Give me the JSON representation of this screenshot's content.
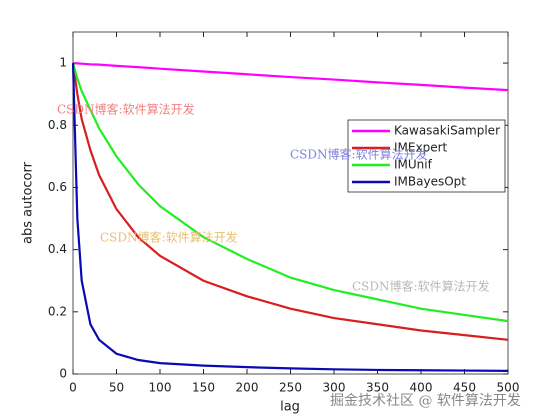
{
  "chart_data": {
    "type": "line",
    "xlabel": "lag",
    "ylabel": "abs autocorr",
    "x": [
      0,
      5,
      10,
      20,
      30,
      50,
      75,
      100,
      150,
      200,
      250,
      300,
      350,
      400,
      450,
      500
    ],
    "series": [
      {
        "name": "KawasakiSampler",
        "color": "#ff00ff",
        "values": [
          1,
          0.999,
          0.998,
          0.996,
          0.995,
          0.991,
          0.987,
          0.982,
          0.973,
          0.964,
          0.955,
          0.947,
          0.938,
          0.93,
          0.921,
          0.913
        ]
      },
      {
        "name": "IMExpert",
        "color": "#d81e1e",
        "values": [
          1,
          0.9,
          0.82,
          0.72,
          0.64,
          0.53,
          0.44,
          0.38,
          0.3,
          0.25,
          0.21,
          0.18,
          0.16,
          0.14,
          0.125,
          0.11
        ]
      },
      {
        "name": "IMUnif",
        "color": "#22ee22",
        "values": [
          1,
          0.95,
          0.91,
          0.85,
          0.79,
          0.7,
          0.61,
          0.54,
          0.44,
          0.37,
          0.31,
          0.27,
          0.24,
          0.21,
          0.19,
          0.17
        ]
      },
      {
        "name": "IMBayesOpt",
        "color": "#0a0ab4",
        "values": [
          1,
          0.5,
          0.3,
          0.16,
          0.11,
          0.065,
          0.045,
          0.035,
          0.027,
          0.022,
          0.018,
          0.015,
          0.013,
          0.012,
          0.011,
          0.01
        ]
      }
    ],
    "xlim": [
      0,
      500
    ],
    "xticks": [
      0,
      50,
      100,
      150,
      200,
      250,
      300,
      350,
      400,
      450,
      500
    ],
    "ylim": [
      0,
      1.1
    ],
    "yticks": [
      0,
      0.2,
      0.4,
      0.6,
      0.8,
      1
    ],
    "grid": false,
    "legend": "northeast",
    "watermarks": [
      "CSDN博客:软件算法开发",
      "CSDN博客:软件算法开发",
      "CSDN博客:软件算法开发",
      "CSDN博客:软件算法开发",
      "掘金技术社区 @ 软件算法开发"
    ]
  }
}
